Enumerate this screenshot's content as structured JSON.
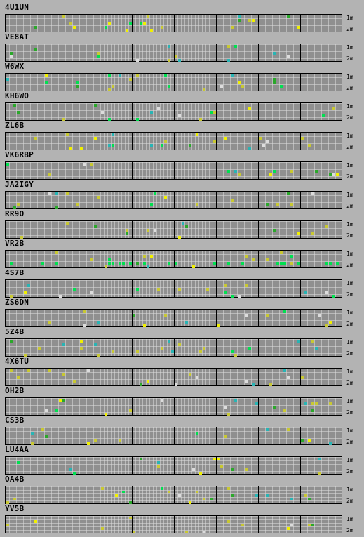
{
  "band_labels": {
    "top": "1m",
    "bottom": "2m"
  },
  "colors": {
    "background": "#b3b3b3",
    "grid": "#8f8f8f",
    "yellow": "#c8c832",
    "bright_yellow": "#f0f000",
    "green": "#2aa82a",
    "bright_green": "#00e050",
    "cyan": "#28b4b4",
    "white": "#dcdcdc"
  },
  "stations": [
    {
      "call": "4U1UN"
    },
    {
      "call": "VE8AT"
    },
    {
      "call": "W6WX"
    },
    {
      "call": "KH6WO"
    },
    {
      "call": "ZL6B"
    },
    {
      "call": "VK6RBP"
    },
    {
      "call": "JA2IGY"
    },
    {
      "call": "RR9O"
    },
    {
      "call": "VR2B"
    },
    {
      "call": "4S7B"
    },
    {
      "call": "ZS6DN"
    },
    {
      "call": "5Z4B"
    },
    {
      "call": "4X6TU"
    },
    {
      "call": "OH2B"
    },
    {
      "call": "CS3B"
    },
    {
      "call": "LU4AA"
    },
    {
      "call": "OA4B"
    },
    {
      "call": "YV5B"
    }
  ]
}
